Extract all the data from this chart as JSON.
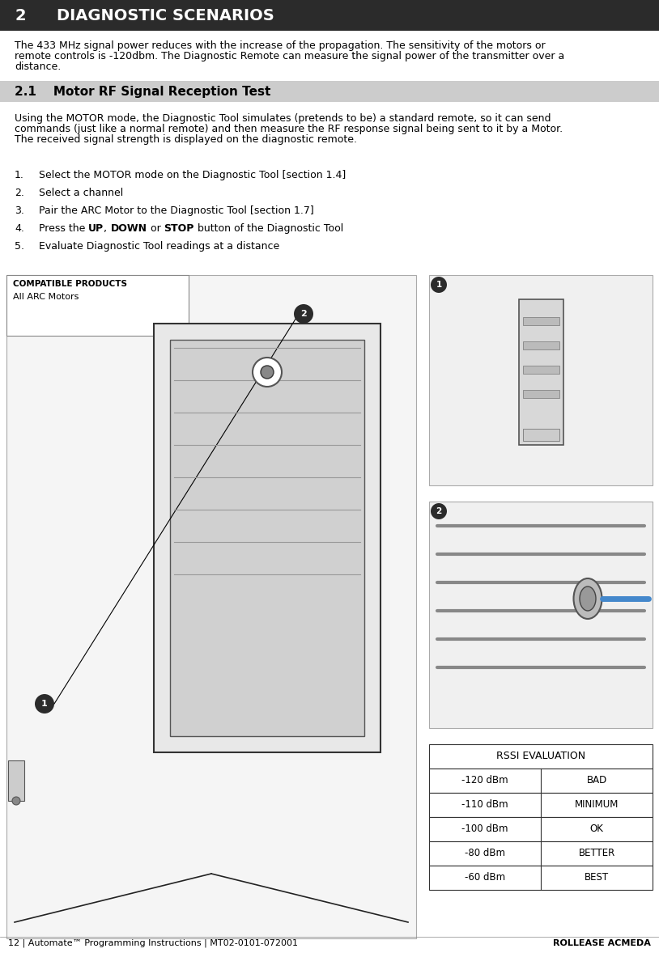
{
  "page_width": 8.14,
  "page_height": 11.83,
  "bg_color": "#ffffff",
  "header_bg": "#2b2b2b",
  "header_text_color": "#ffffff",
  "header_number": "2",
  "header_title": "DIAGNOSTIC SCENARIOS",
  "header_fontsize": 14,
  "subheader_bg": "#cccccc",
  "subheader_number": "2.1",
  "subheader_title": "Motor RF Signal Reception Test",
  "subheader_fontsize": 11,
  "intro_text": "The 433 MHz signal power reduces with the increase of the propagation. The sensitivity of the motors or\nremote controls is -120dbm. The Diagnostic Remote can measure the signal power of the transmitter over a\ndistance.",
  "body_text": "Using the MOTOR mode, the Diagnostic Tool simulates (pretends to be) a standard remote, so it can send\ncommands (just like a normal remote) and then measure the RF response signal being sent to it by a Motor.\nThe received signal strength is displayed on the diagnostic remote.",
  "compatible_products_title": "COMPATIBLE PRODUCTS",
  "compatible_products": "All ARC Motors",
  "rssi_title": "RSSI EVALUATION",
  "rssi_data": [
    [
      "-120 dBm",
      "BAD"
    ],
    [
      "-110 dBm",
      "MINIMUM"
    ],
    [
      "-100 dBm",
      "OK"
    ],
    [
      "-80 dBm",
      "BETTER"
    ],
    [
      "-60 dBm",
      "BEST"
    ]
  ],
  "footer_left": "12 | Automate™ Programming Instructions | MT02-0101-072001",
  "footer_right": "ROLLEASE ACMEDA",
  "footer_fontsize": 8,
  "circle_bg": "#2b2b2b",
  "circle_text_color": "#ffffff",
  "body_fontsize": 9,
  "step_fontsize": 9
}
